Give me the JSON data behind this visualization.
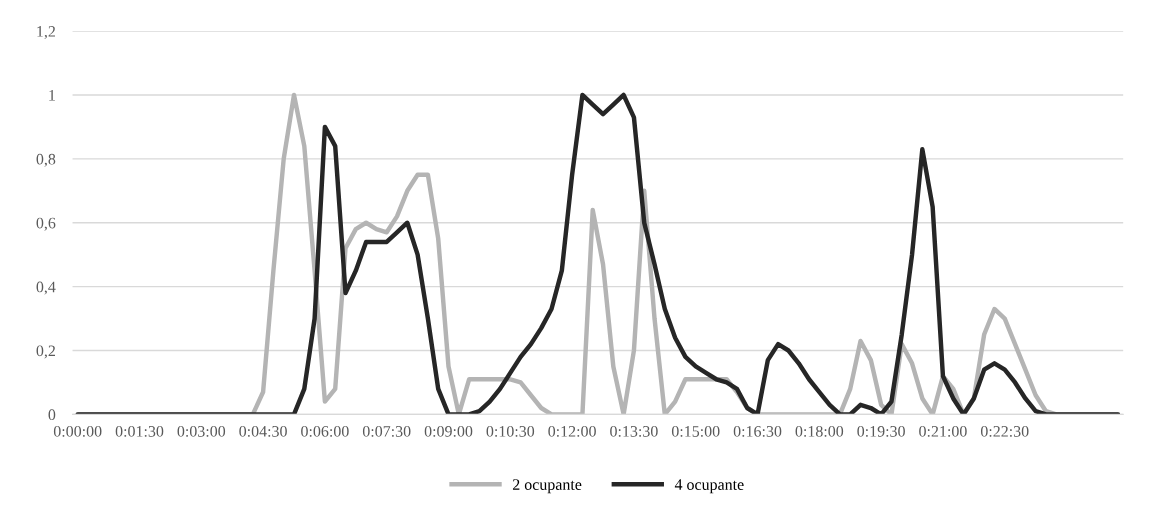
{
  "chart_data": {
    "type": "line",
    "categories": [
      "0:00:00",
      null,
      null,
      null,
      null,
      null,
      "0:01:30",
      null,
      null,
      null,
      null,
      null,
      "0:03:00",
      null,
      null,
      null,
      null,
      null,
      "0:04:30",
      null,
      null,
      null,
      null,
      null,
      "0:06:00",
      null,
      null,
      null,
      null,
      null,
      "0:07:30",
      null,
      null,
      null,
      null,
      null,
      "0:09:00",
      null,
      null,
      null,
      null,
      null,
      "0:10:30",
      null,
      null,
      null,
      null,
      null,
      "0:12:00",
      null,
      null,
      null,
      null,
      null,
      "0:13:30",
      null,
      null,
      null,
      null,
      null,
      "0:15:00",
      null,
      null,
      null,
      null,
      null,
      "0:16:30",
      null,
      null,
      null,
      null,
      null,
      "0:18:00",
      null,
      null,
      null,
      null,
      null,
      "0:19:30",
      null,
      null,
      null,
      null,
      null,
      "0:21:00",
      null,
      null,
      null,
      null,
      null,
      "0:22:30",
      null,
      null,
      null,
      null,
      null,
      null,
      null,
      null,
      null,
      null,
      null
    ],
    "series": [
      {
        "name": "2 ocupante",
        "color": "#b4b4b4",
        "values": [
          0,
          0,
          0,
          0,
          0,
          0,
          0,
          0,
          0,
          0,
          0,
          0,
          0,
          0,
          0,
          0,
          0,
          0,
          0.07,
          0.45,
          0.8,
          1.0,
          0.84,
          0.45,
          0.04,
          0.08,
          0.52,
          0.58,
          0.6,
          0.58,
          0.57,
          0.62,
          0.7,
          0.75,
          0.75,
          0.55,
          0.15,
          0,
          0.11,
          0.11,
          0.11,
          0.11,
          0.11,
          0.1,
          0.06,
          0.02,
          0,
          0,
          0,
          0,
          0.64,
          0.47,
          0.15,
          0,
          0.2,
          0.7,
          0.3,
          0,
          0.04,
          0.11,
          0.11,
          0.11,
          0.11,
          0.11,
          0.07,
          0.02,
          0,
          0,
          0,
          0,
          0,
          0,
          0,
          0,
          0,
          0.08,
          0.23,
          0.17,
          0.03,
          0,
          0.22,
          0.16,
          0.05,
          0,
          0.12,
          0.08,
          0,
          0.05,
          0.25,
          0.33,
          0.3,
          0.22,
          0.14,
          0.06,
          0.01,
          0,
          0,
          0,
          0,
          0,
          0,
          0
        ]
      },
      {
        "name": "4 ocupante",
        "color": "#262626",
        "values": [
          0,
          0,
          0,
          0,
          0,
          0,
          0,
          0,
          0,
          0,
          0,
          0,
          0,
          0,
          0,
          0,
          0,
          0,
          0,
          0,
          0,
          0,
          0.08,
          0.3,
          0.9,
          0.84,
          0.38,
          0.45,
          0.54,
          0.54,
          0.54,
          0.57,
          0.6,
          0.5,
          0.3,
          0.08,
          0,
          0,
          0,
          0.01,
          0.04,
          0.08,
          0.13,
          0.18,
          0.22,
          0.27,
          0.33,
          0.45,
          0.75,
          1.0,
          0.97,
          0.94,
          0.97,
          1.0,
          0.93,
          0.6,
          0.47,
          0.33,
          0.24,
          0.18,
          0.15,
          0.13,
          0.11,
          0.1,
          0.08,
          0.02,
          0,
          0.17,
          0.22,
          0.2,
          0.16,
          0.11,
          0.07,
          0.03,
          0,
          0,
          0.03,
          0.02,
          0,
          0.04,
          0.25,
          0.5,
          0.83,
          0.65,
          0.12,
          0.05,
          0,
          0.05,
          0.14,
          0.16,
          0.14,
          0.1,
          0.05,
          0.01,
          0,
          0,
          0,
          0,
          0,
          0,
          0,
          0
        ]
      }
    ],
    "ylim": [
      0,
      1.2
    ],
    "yticks": [
      0,
      {
        "value": 0.2,
        "label": "0,2"
      },
      {
        "value": 0.4,
        "label": "0,4"
      },
      {
        "value": 0.6,
        "label": "0,6"
      },
      {
        "value": 0.8,
        "label": "0,8"
      },
      1,
      {
        "value": 1.2,
        "label": "1,2"
      }
    ],
    "grid": "y",
    "legend": "bottom",
    "line_style": "solid",
    "marker": "none"
  }
}
